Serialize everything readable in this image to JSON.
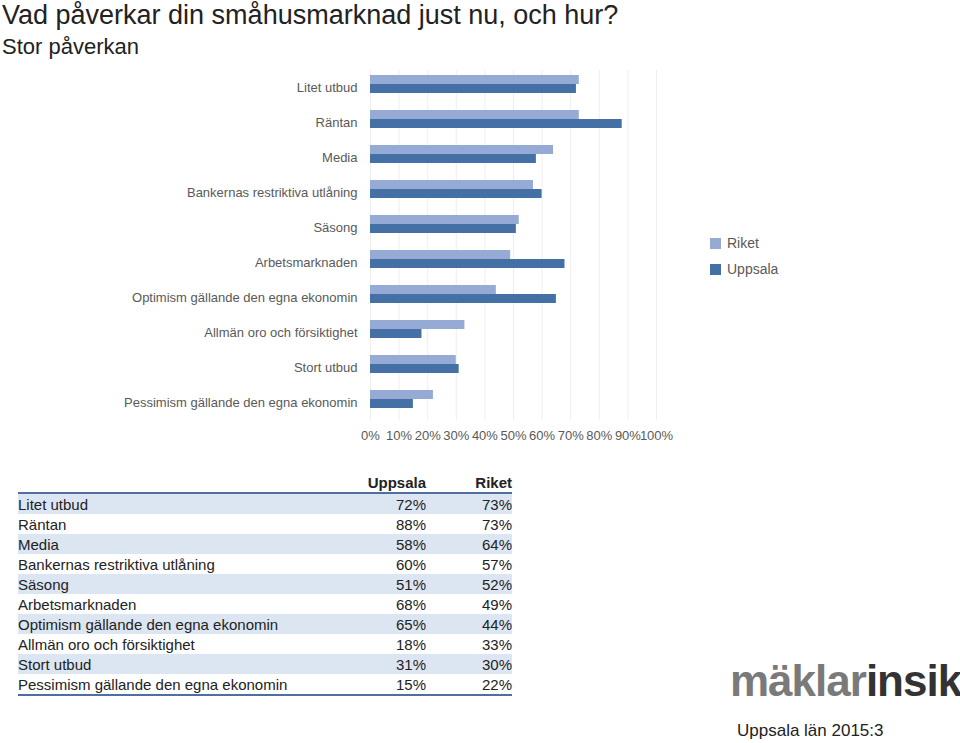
{
  "chart_data": {
    "type": "bar",
    "orientation": "horizontal",
    "title": "Vad påverkar din småhusmarknad just nu, och hur?",
    "subtitle": "Stor påverkan",
    "categories": [
      "Litet utbud",
      "Räntan",
      "Media",
      "Bankernas restriktiva utlåning",
      "Säsong",
      "Arbetsmarknaden",
      "Optimism gällande den egna ekonomin",
      "Allmän oro och försiktighet",
      "Stort utbud",
      "Pessimism gällande den egna ekonomin"
    ],
    "series": [
      {
        "name": "Riket",
        "color": "#95abd6",
        "values": [
          73,
          73,
          64,
          57,
          52,
          49,
          44,
          33,
          30,
          22
        ]
      },
      {
        "name": "Uppsala",
        "color": "#4470a5",
        "values": [
          72,
          88,
          58,
          60,
          51,
          68,
          65,
          18,
          31,
          15
        ]
      }
    ],
    "xlim": [
      0,
      100
    ],
    "xticks": [
      {
        "value": 0,
        "label": "0%"
      },
      {
        "value": 10,
        "label": "10%"
      },
      {
        "value": 20,
        "label": "20%"
      },
      {
        "value": 30,
        "label": "30%"
      },
      {
        "value": 40,
        "label": "40%"
      },
      {
        "value": 50,
        "label": "50%"
      },
      {
        "value": 60,
        "label": "60%"
      },
      {
        "value": 70,
        "label": "70%"
      },
      {
        "value": 80,
        "label": "80%"
      },
      {
        "value": 90,
        "label": "90%"
      },
      {
        "value": 100,
        "label": "100%"
      }
    ],
    "grid": true,
    "legend": "right"
  },
  "table": {
    "header": [
      "Uppsala",
      "Riket"
    ],
    "rows": [
      [
        "Litet utbud",
        "72%",
        "73%"
      ],
      [
        "Räntan",
        "88%",
        "73%"
      ],
      [
        "Media",
        "58%",
        "64%"
      ],
      [
        "Bankernas restriktiva utlåning",
        "60%",
        "57%"
      ],
      [
        "Säsong",
        "51%",
        "52%"
      ],
      [
        "Arbetsmarknaden",
        "68%",
        "49%"
      ],
      [
        "Optimism gällande den egna ekonomin",
        "65%",
        "44%"
      ],
      [
        "Allmän oro och försiktighet",
        "18%",
        "33%"
      ],
      [
        "Stort utbud",
        "31%",
        "30%"
      ],
      [
        "Pessimism gällande den egna ekonomin",
        "15%",
        "22%"
      ]
    ]
  },
  "logo": [
    "mäklar",
    "insikt"
  ],
  "caption": "Uppsala län 2015:3"
}
